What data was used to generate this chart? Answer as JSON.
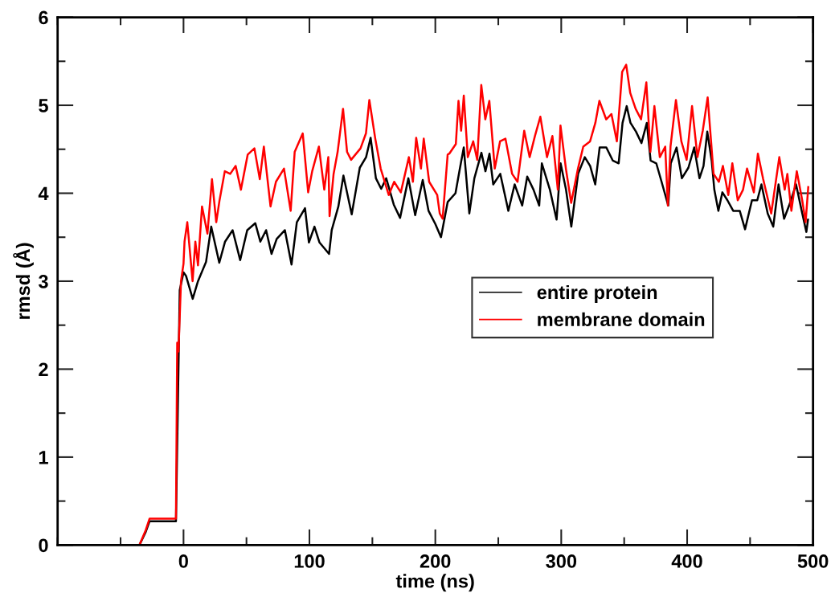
{
  "chart_data": {
    "type": "line",
    "xlabel": "time (ns)",
    "ylabel": "rmsd (Å)",
    "xlim": [
      -100,
      500
    ],
    "xticks": [
      0,
      100,
      200,
      300,
      400,
      500
    ],
    "ylim": [
      0,
      6
    ],
    "yticks": [
      0,
      1,
      2,
      3,
      4,
      5,
      6
    ],
    "grid": false,
    "legend": "right",
    "marker": "none",
    "line_style": "solid",
    "series": [
      {
        "name": "entire protein",
        "color": "#000000",
        "x": [
          -35,
          -30,
          -27,
          -6,
          -3,
          0,
          2,
          7.3,
          11.5,
          17.9,
          22,
          28.4,
          33,
          39,
          45,
          50.6,
          57,
          61,
          65.6,
          69.9,
          74,
          80.5,
          85.8,
          90,
          96.5,
          99.6,
          104,
          108,
          115.6,
          117.7,
          123,
          127,
          133.6,
          140,
          145,
          148.6,
          152.8,
          157,
          161,
          167,
          172,
          178.6,
          184,
          190,
          194.6,
          200,
          204.5,
          209.8,
          216,
          219.5,
          222.6,
          227,
          231,
          236.6,
          239.8,
          243,
          246,
          251.6,
          258,
          263,
          269,
          273,
          278,
          282.5,
          284.6,
          291,
          296.3,
          299.5,
          303.8,
          308,
          313.4,
          318.7,
          323,
          327,
          330.5,
          335.8,
          341,
          345.6,
          348.7,
          352,
          355,
          359.4,
          363.7,
          368,
          371,
          375.5,
          379.7,
          385,
          387,
          391.6,
          395.8,
          401,
          405.6,
          409.8,
          413,
          416,
          419.5,
          421.6,
          424.8,
          428,
          432,
          436.6,
          441.8,
          446,
          451.5,
          455.7,
          459,
          464,
          468.4,
          472.6,
          477,
          481,
          486.5,
          491,
          494.7,
          496
        ],
        "values": [
          0,
          0.15,
          0.27,
          0.27,
          2.9,
          3.1,
          3.06,
          2.8,
          3.0,
          3.22,
          3.62,
          3.21,
          3.45,
          3.58,
          3.24,
          3.58,
          3.66,
          3.45,
          3.58,
          3.31,
          3.48,
          3.58,
          3.19,
          3.67,
          3.83,
          3.44,
          3.62,
          3.44,
          3.31,
          3.58,
          3.85,
          4.2,
          3.76,
          4.29,
          4.41,
          4.63,
          4.17,
          4.05,
          4.17,
          3.87,
          3.72,
          4.17,
          3.75,
          4.15,
          3.8,
          3.65,
          3.5,
          3.9,
          4.0,
          4.28,
          4.52,
          3.77,
          4.17,
          4.46,
          4.25,
          4.45,
          4.1,
          4.22,
          3.8,
          4.1,
          3.86,
          4.19,
          4.04,
          3.86,
          4.34,
          4.04,
          3.7,
          4.34,
          4.04,
          3.62,
          4.22,
          4.41,
          4.31,
          4.1,
          4.52,
          4.52,
          4.37,
          4.34,
          4.8,
          4.99,
          4.8,
          4.7,
          4.57,
          4.8,
          4.37,
          4.34,
          4.13,
          3.86,
          4.34,
          4.52,
          4.17,
          4.29,
          4.52,
          4.17,
          4.31,
          4.7,
          4.37,
          4.04,
          3.8,
          4.01,
          3.92,
          3.8,
          3.8,
          3.59,
          3.92,
          3.92,
          4.1,
          3.77,
          3.62,
          4.1,
          3.71,
          3.86,
          4.1,
          3.8,
          3.56,
          3.7
        ]
      },
      {
        "name": "membrane domain",
        "color": "#ff0000",
        "x": [
          -35,
          -30,
          -27,
          -6,
          -5,
          -4,
          -2,
          0,
          0.8,
          3.0,
          7.2,
          9.4,
          11.5,
          14.7,
          19.0,
          22.6,
          26.0,
          28.5,
          32.8,
          37.1,
          41.4,
          45.6,
          51.0,
          56.3,
          60.6,
          63.8,
          69.1,
          73.4,
          79.8,
          85.1,
          88.3,
          94.7,
          99.0,
          102.2,
          107.5,
          111.8,
          115.0,
          116.0,
          119.2,
          122.4,
          126.7,
          129.9,
          133.1,
          140.6,
          144.9,
          147.6,
          152.3,
          156.6,
          163.0,
          167.3,
          172.6,
          179.0,
          182.2,
          184.8,
          188.6,
          190.8,
          195.1,
          201.5,
          203.5,
          205.8,
          209.8,
          211.1,
          216.3,
          218.4,
          220.5,
          222.6,
          225.8,
          230.1,
          233.3,
          236.5,
          239.7,
          242.9,
          247.2,
          251.4,
          255.7,
          261.0,
          265.3,
          270.6,
          274.9,
          279.1,
          283.4,
          288.7,
          293.0,
          297.3,
          299.4,
          303.7,
          307.9,
          313.3,
          317.5,
          322.9,
          327.1,
          330.3,
          335.7,
          339.9,
          344.2,
          348.4,
          351.6,
          354.8,
          359.1,
          363.4,
          367.6,
          370.8,
          374.0,
          378.3,
          382.6,
          384.7,
          386.8,
          391.1,
          395.4,
          399.6,
          403.9,
          408.2,
          412.4,
          416.3,
          421.0,
          425.2,
          428.4,
          432.7,
          435.9,
          440.2,
          444.4,
          447.6,
          453.0,
          456.2,
          460.4,
          466.8,
          473.2,
          477.5,
          479.6,
          482.8,
          487.1,
          491.4,
          494.1,
          496.2
        ],
        "values": [
          0,
          0.17,
          0.3,
          0.3,
          2.3,
          2.2,
          3.0,
          3.2,
          3.45,
          3.67,
          3.0,
          3.45,
          3.18,
          3.85,
          3.54,
          4.16,
          3.67,
          3.91,
          4.25,
          4.22,
          4.31,
          4.04,
          4.44,
          4.51,
          4.16,
          4.53,
          3.85,
          4.13,
          4.28,
          3.8,
          4.47,
          4.68,
          4.01,
          4.25,
          4.53,
          4.04,
          4.41,
          3.74,
          4.22,
          4.47,
          4.96,
          4.47,
          4.38,
          4.51,
          4.68,
          5.06,
          4.62,
          4.28,
          3.98,
          4.13,
          4.01,
          4.41,
          4.13,
          4.63,
          4.28,
          4.62,
          4.13,
          3.98,
          3.77,
          3.71,
          4.44,
          4.45,
          4.56,
          5.05,
          4.71,
          5.11,
          4.41,
          4.59,
          4.38,
          5.23,
          4.84,
          5.05,
          4.28,
          4.59,
          4.62,
          4.22,
          4.13,
          4.71,
          4.41,
          4.65,
          4.87,
          4.41,
          4.65,
          4.04,
          4.77,
          4.28,
          3.89,
          4.28,
          4.53,
          4.59,
          4.8,
          5.05,
          4.84,
          4.9,
          4.59,
          5.38,
          5.46,
          5.14,
          4.96,
          4.84,
          5.26,
          4.47,
          4.99,
          4.41,
          4.53,
          3.86,
          4.53,
          5.06,
          4.59,
          4.38,
          4.99,
          4.41,
          4.71,
          5.09,
          4.22,
          4.13,
          4.31,
          3.98,
          4.34,
          3.92,
          4.04,
          4.28,
          4.01,
          4.45,
          4.16,
          3.77,
          4.41,
          4.04,
          4.22,
          3.8,
          4.25,
          3.92,
          3.67,
          4.07
        ]
      }
    ]
  }
}
